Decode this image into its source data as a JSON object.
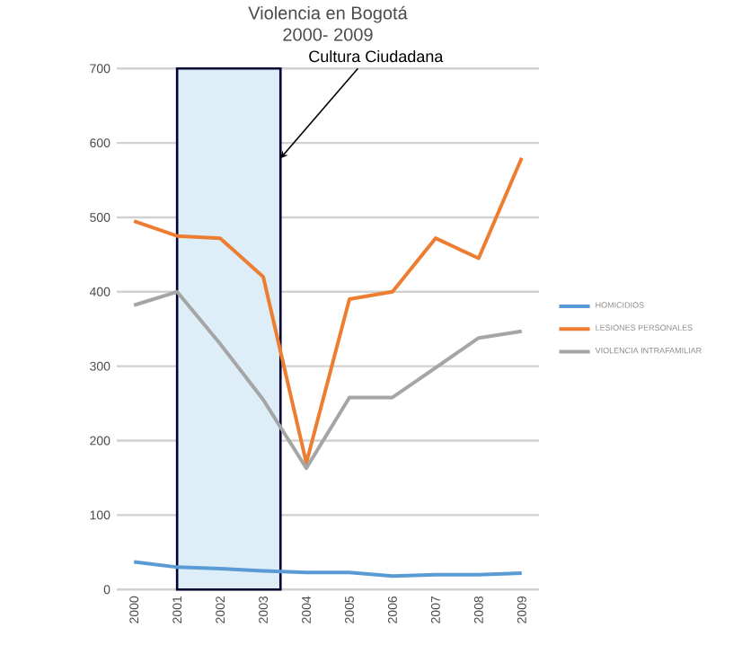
{
  "chart_data": {
    "type": "line",
    "title": "Violencia en Bogotá",
    "subtitle": "2000- 2009",
    "x": [
      2000,
      2001,
      2002,
      2003,
      2004,
      2005,
      2006,
      2007,
      2008,
      2009
    ],
    "xlim": [
      1999.6,
      2009.4
    ],
    "xticks": [
      2000,
      2001,
      2002,
      2003,
      2004,
      2005,
      2006,
      2007,
      2008,
      2009
    ],
    "ylim": [
      0,
      700
    ],
    "yticks": [
      0,
      100,
      200,
      300,
      400,
      500,
      600,
      700
    ],
    "grid": "y",
    "legend": "right",
    "marker": "none",
    "line_style": "solid",
    "series": [
      {
        "name": "HOMICIDIOS",
        "color": "#5b9bd5",
        "values": [
          37,
          30,
          28,
          25,
          23,
          23,
          18,
          20,
          20,
          22
        ]
      },
      {
        "name": "LESIONES PERSONALES",
        "color": "#ed7d31",
        "values": [
          495,
          475,
          472,
          420,
          170,
          390,
          400,
          472,
          445,
          580
        ]
      },
      {
        "name": "VIOLENCIA INTRAFAMILIAR",
        "color": "#a5a5a5",
        "values": [
          382,
          400,
          330,
          255,
          163,
          258,
          258,
          298,
          338,
          347
        ]
      }
    ],
    "bands": [
      {
        "axis": "x",
        "from": 2001,
        "to": 2003.4,
        "label": "Cultura Ciudadana",
        "color": "#ddeef8"
      }
    ]
  }
}
